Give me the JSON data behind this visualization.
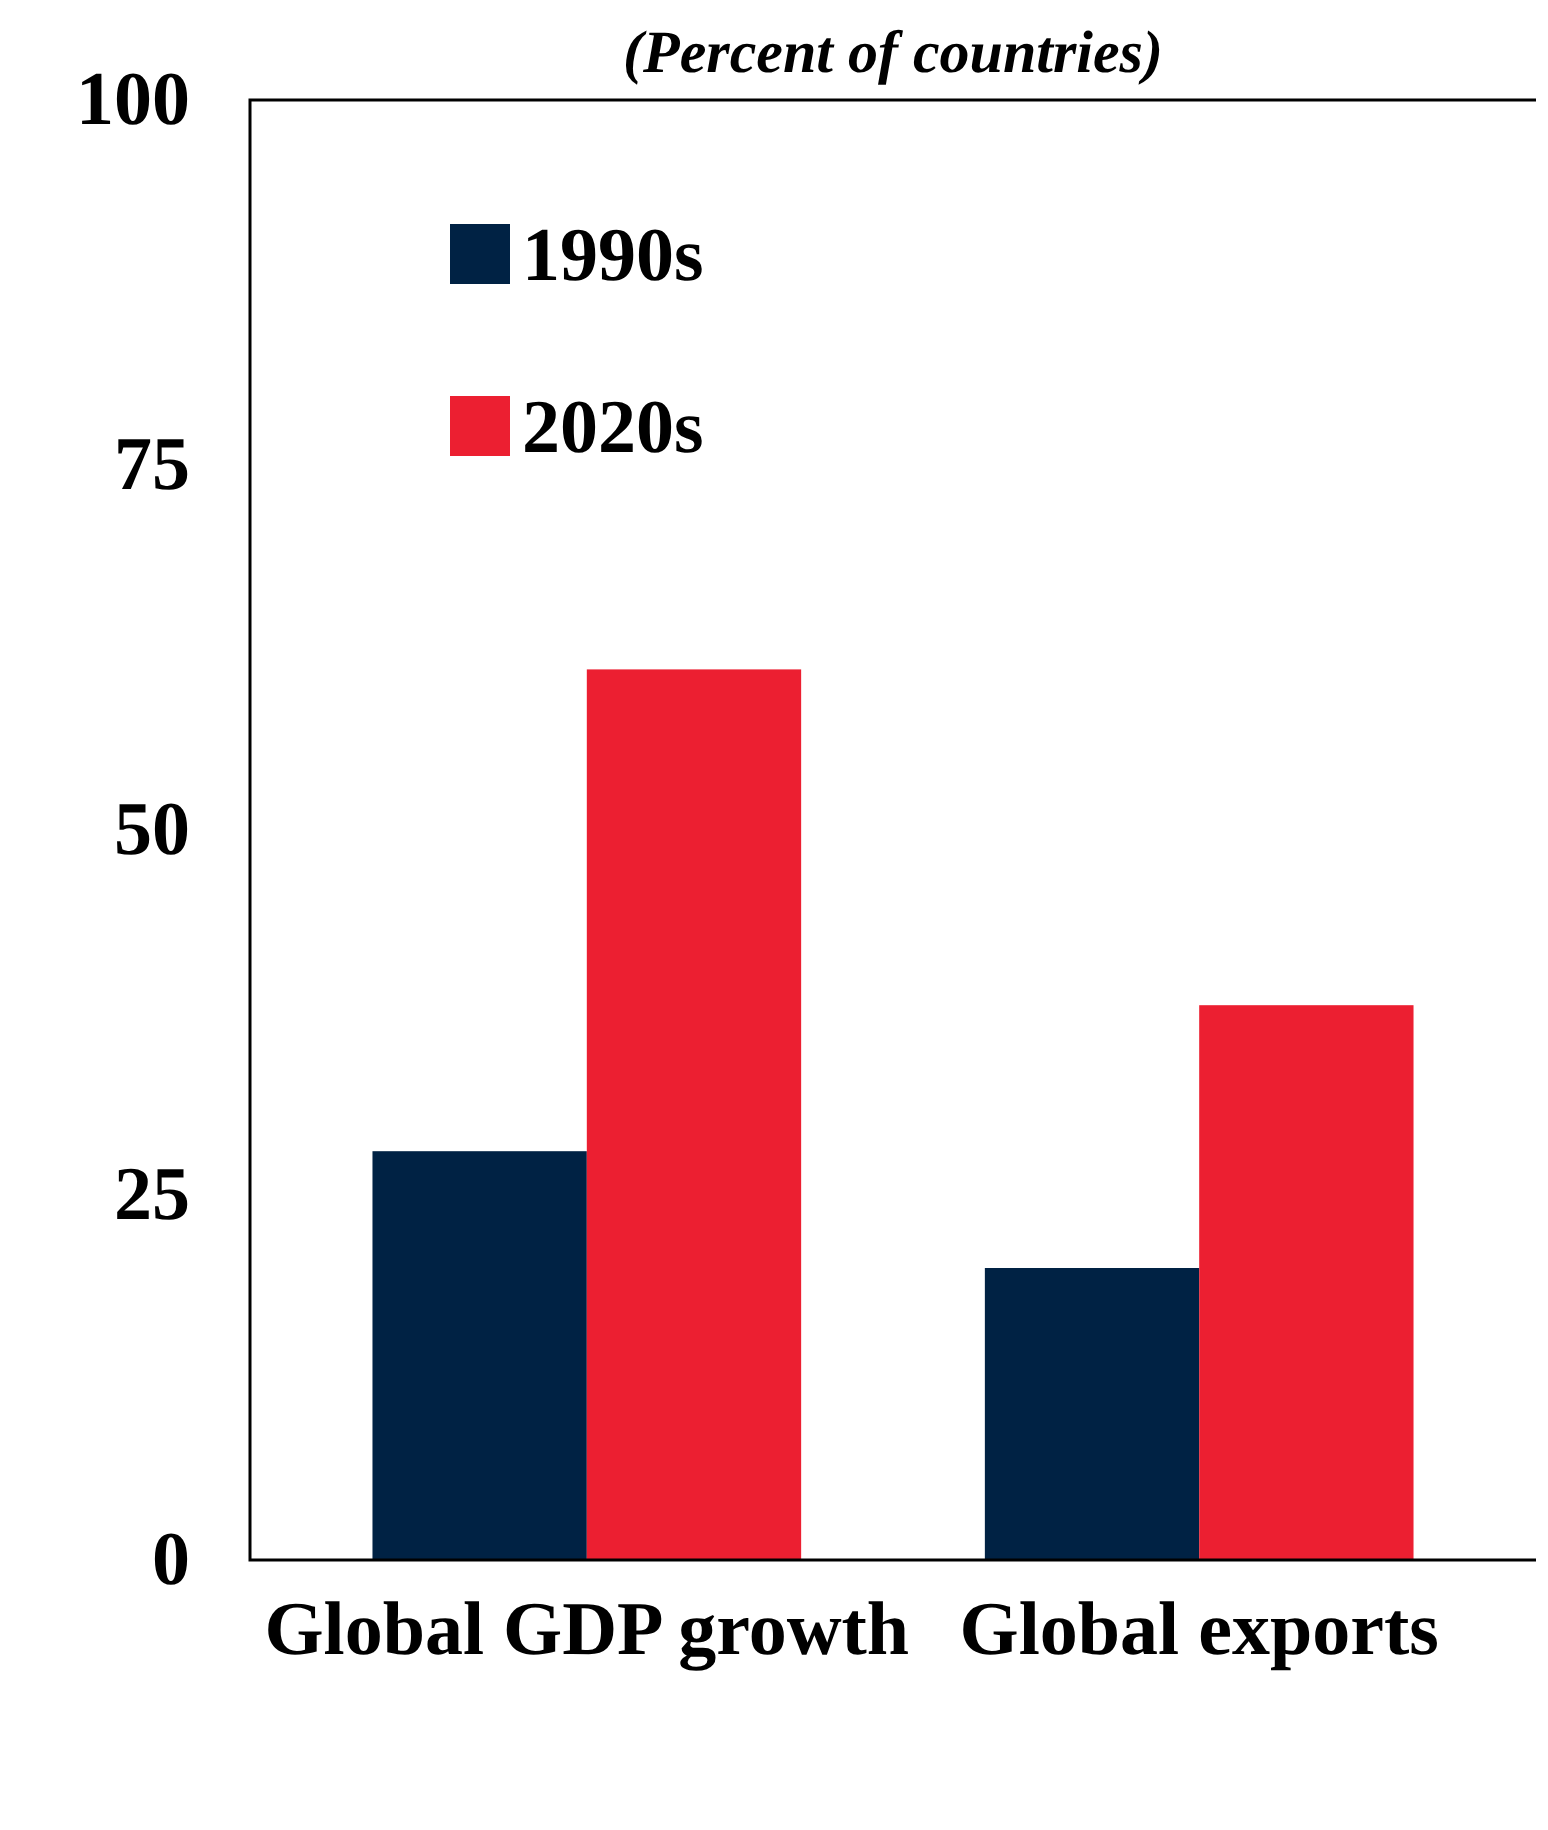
{
  "chart_data": {
    "type": "bar",
    "subtitle": "(Percent of countries)",
    "categories": [
      "Global GDP growth",
      "Global exports"
    ],
    "series": [
      {
        "name": "1990s",
        "color": "#002244",
        "values": [
          28,
          20
        ]
      },
      {
        "name": "2020s",
        "color": "#ec1f31",
        "values": [
          61,
          38
        ]
      }
    ],
    "ylim": [
      0,
      100
    ],
    "yticks": [
      0,
      25,
      50,
      75,
      100
    ],
    "grid": false,
    "legend": "top left"
  }
}
